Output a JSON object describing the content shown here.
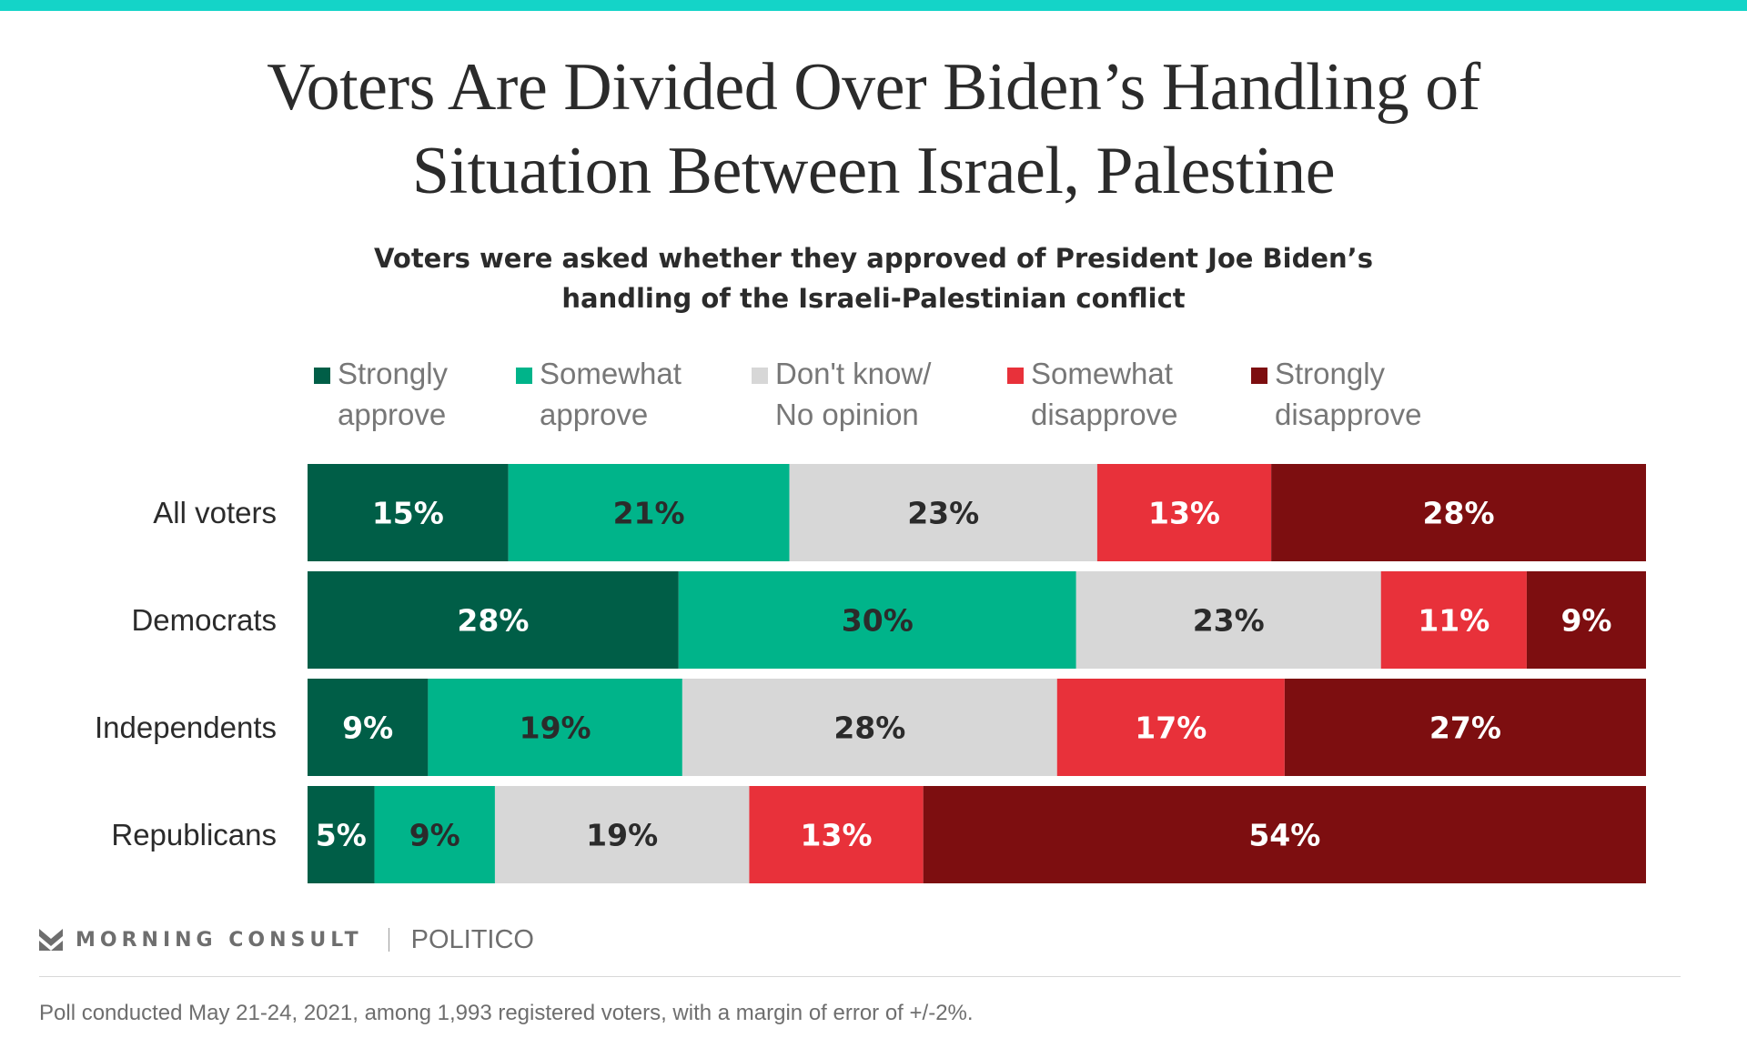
{
  "brand": {
    "topbar_color": "#14d4c8"
  },
  "title": {
    "line1": "Voters Are Divided Over Biden’s Handling of",
    "line2": "Situation Between Israel, Palestine"
  },
  "subtitle": {
    "line1": "Voters were asked whether they approved of President Joe Biden’s",
    "line2": "handling of the Israeli-Palestinian conflict"
  },
  "legend": [
    {
      "label": "Strongly\napprove",
      "color": "#005e47",
      "icon": "square-swatch"
    },
    {
      "label": "Somewhat\napprove",
      "color": "#00b48a",
      "icon": "square-swatch"
    },
    {
      "label": "Don't know/\nNo opinion",
      "color": "#d7d7d7",
      "icon": "square-swatch"
    },
    {
      "label": "Somewhat\ndisapprove",
      "color": "#e8313a",
      "icon": "square-swatch"
    },
    {
      "label": "Strongly\ndisapprove",
      "color": "#7d0e10",
      "icon": "square-swatch"
    }
  ],
  "chart_data": {
    "type": "bar",
    "orientation": "horizontal",
    "stacked": true,
    "title": "Voters Are Divided Over Biden’s Handling of Situation Between Israel, Palestine",
    "subtitle": "Voters were asked whether they approved of President Joe Biden’s handling of the Israeli-Palestinian conflict",
    "categories": [
      "All voters",
      "Democrats",
      "Independents",
      "Republicans"
    ],
    "series": [
      {
        "name": "Strongly approve",
        "color": "#005e47",
        "label_color": "#ffffff",
        "values": [
          15,
          28,
          9,
          5
        ]
      },
      {
        "name": "Somewhat approve",
        "color": "#00b48a",
        "label_color": "#2b2b2b",
        "values": [
          21,
          30,
          19,
          9
        ]
      },
      {
        "name": "Don't know/No opinion",
        "color": "#d7d7d7",
        "label_color": "#2b2b2b",
        "values": [
          23,
          23,
          28,
          19
        ]
      },
      {
        "name": "Somewhat disapprove",
        "color": "#e8313a",
        "label_color": "#ffffff",
        "values": [
          13,
          11,
          17,
          13
        ]
      },
      {
        "name": "Strongly disapprove",
        "color": "#7d0e10",
        "label_color": "#ffffff",
        "values": [
          28,
          9,
          27,
          54
        ]
      }
    ],
    "value_suffix": "%",
    "xlabel": "",
    "ylabel": "",
    "grid": false,
    "legend_position": "top"
  },
  "footer": {
    "logo_text": "MORNING CONSULT",
    "partner": "POLITICO",
    "note": "Poll conducted May 21-24, 2021, among 1,993 registered voters, with a margin of error of +/-2%."
  }
}
